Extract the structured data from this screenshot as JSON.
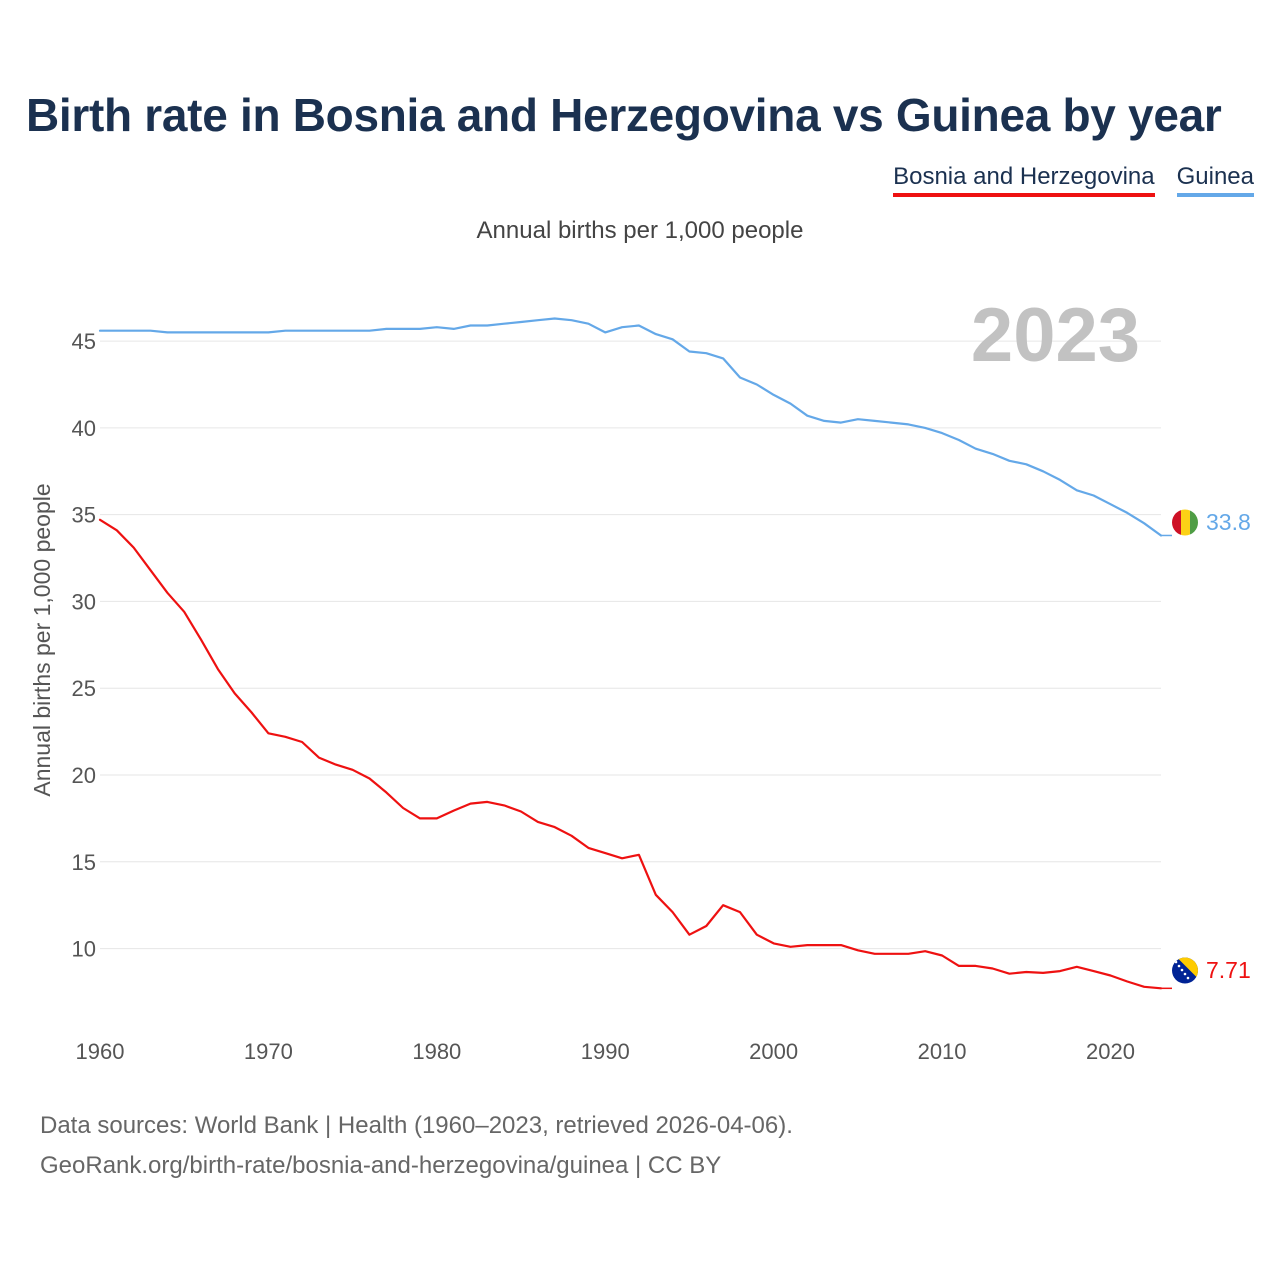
{
  "page": {
    "title": "Birth rate in Bosnia and Herzegovina vs Guinea by year",
    "footer_line1": "Data sources: World Bank | Health (1960–2023, retrieved 2026-04-06).",
    "footer_line2": "GeoRank.org/birth-rate/bosnia-and-herzegovina/guinea | CC BY"
  },
  "chart_data": {
    "type": "line",
    "title": "Birth rate in Bosnia and Herzegovina vs Guinea by year",
    "subtitle": "Annual births per 1,000 people",
    "xlabel": "",
    "ylabel": "Annual births per 1,000 people",
    "year_watermark": "2023",
    "xlim": [
      1960,
      2023
    ],
    "ylim": [
      6,
      48
    ],
    "x_ticks": [
      1960,
      1970,
      1980,
      1990,
      2000,
      2010,
      2020
    ],
    "y_ticks": [
      10,
      15,
      20,
      25,
      30,
      35,
      40,
      45
    ],
    "grid": true,
    "legend_position": "top-right",
    "x": [
      1960,
      1961,
      1962,
      1963,
      1964,
      1965,
      1966,
      1967,
      1968,
      1969,
      1970,
      1971,
      1972,
      1973,
      1974,
      1975,
      1976,
      1977,
      1978,
      1979,
      1980,
      1981,
      1982,
      1983,
      1984,
      1985,
      1986,
      1987,
      1988,
      1989,
      1990,
      1991,
      1992,
      1993,
      1994,
      1995,
      1996,
      1997,
      1998,
      1999,
      2000,
      2001,
      2002,
      2003,
      2004,
      2005,
      2006,
      2007,
      2008,
      2009,
      2010,
      2011,
      2012,
      2013,
      2014,
      2015,
      2016,
      2017,
      2018,
      2019,
      2020,
      2021,
      2022,
      2023
    ],
    "series": [
      {
        "name": "Bosnia and Herzegovina",
        "color": "#ee1111",
        "flag": "bosnia-and-herzegovina-flag-icon",
        "end_label": "7.71",
        "values": [
          34.7,
          34.1,
          33.1,
          31.8,
          30.5,
          29.4,
          27.8,
          26.1,
          24.7,
          23.6,
          22.4,
          22.2,
          21.9,
          21.0,
          20.6,
          20.3,
          19.8,
          19.0,
          18.1,
          17.5,
          17.5,
          17.95,
          18.35,
          18.45,
          18.25,
          17.9,
          17.3,
          17.0,
          16.5,
          15.8,
          15.5,
          15.2,
          15.4,
          13.1,
          12.1,
          10.8,
          11.3,
          12.5,
          12.1,
          10.8,
          10.3,
          10.1,
          10.2,
          10.2,
          10.2,
          9.9,
          9.7,
          9.7,
          9.7,
          9.85,
          9.6,
          9.0,
          9.0,
          8.85,
          8.55,
          8.65,
          8.6,
          8.7,
          8.95,
          8.7,
          8.45,
          8.1,
          7.8,
          7.71
        ]
      },
      {
        "name": "Guinea",
        "color": "#64a8e8",
        "flag": "guinea-flag-icon",
        "end_label": "33.8",
        "values": [
          45.6,
          45.6,
          45.6,
          45.6,
          45.5,
          45.5,
          45.5,
          45.5,
          45.5,
          45.5,
          45.5,
          45.6,
          45.6,
          45.6,
          45.6,
          45.6,
          45.6,
          45.7,
          45.7,
          45.7,
          45.8,
          45.7,
          45.9,
          45.9,
          46.0,
          46.1,
          46.2,
          46.3,
          46.2,
          46.0,
          45.5,
          45.8,
          45.9,
          45.4,
          45.1,
          44.4,
          44.3,
          44.0,
          42.9,
          42.5,
          41.9,
          41.4,
          40.7,
          40.4,
          40.3,
          40.5,
          40.4,
          40.3,
          40.2,
          40.0,
          39.7,
          39.3,
          38.8,
          38.5,
          38.1,
          37.9,
          37.5,
          37.0,
          36.4,
          36.1,
          35.6,
          35.1,
          34.5,
          33.8
        ]
      }
    ]
  }
}
